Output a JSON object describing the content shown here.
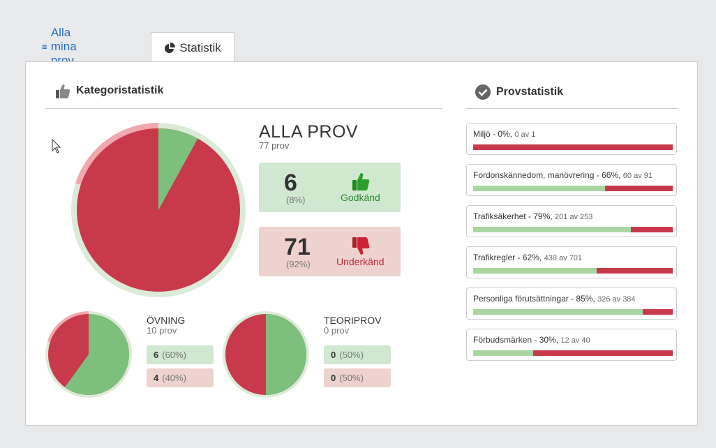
{
  "tabs": {
    "all_label": "Alla mina prov",
    "stats_label": "Statistik"
  },
  "sections": {
    "category_title": "Kategoristatistik",
    "exam_title": "Provstatistik"
  },
  "all": {
    "title": "ALLA PROV",
    "sub": "77 prov",
    "pass": {
      "count": "6",
      "pct": "(8%)",
      "label": "Godkänd",
      "fraction": 0.08
    },
    "fail": {
      "count": "71",
      "pct": "(92%)",
      "label": "Underkänd"
    }
  },
  "practice": {
    "title": "ÖVNING",
    "sub": "10 prov",
    "pass": {
      "count": "6",
      "pct": "(60%)",
      "fraction": 0.6
    },
    "fail": {
      "count": "4",
      "pct": "(40%)"
    }
  },
  "theory": {
    "title": "TEORIPROV",
    "sub": "0 prov",
    "pass": {
      "count": "0",
      "pct": "(50%)",
      "fraction": 0.5
    },
    "fail": {
      "count": "0",
      "pct": "(50%)"
    }
  },
  "exam_stats": [
    {
      "label": "Miljö - 0%,",
      "detail": "0 av 1",
      "fraction": 0.0
    },
    {
      "label": "Fordonskännedom, manövrering - 66%,",
      "detail": "60 av 91",
      "fraction": 0.66
    },
    {
      "label": "Trafiksäkerhet - 79%,",
      "detail": "201 av 253",
      "fraction": 0.79
    },
    {
      "label": "Trafikregler - 62%,",
      "detail": "438 av 701",
      "fraction": 0.62
    },
    {
      "label": "Personliga förutsättningar - 85%,",
      "detail": "326 av 384",
      "fraction": 0.85
    },
    {
      "label": "Förbudsmärken - 30%,",
      "detail": "12 av 40",
      "fraction": 0.3
    }
  ],
  "colors": {
    "pass": "#7dc07d",
    "fail": "#c83a4b",
    "pass_light": "#cfe8cf",
    "fail_light": "#eed2cd",
    "link": "#2a6ebb"
  },
  "icons": {
    "tab_all": "list-icon",
    "tab_stats": "pie-chart-icon",
    "category": "thumbs-up-icon",
    "exam": "check-circle-icon",
    "pass": "thumbs-up-icon",
    "fail": "thumbs-down-icon"
  }
}
